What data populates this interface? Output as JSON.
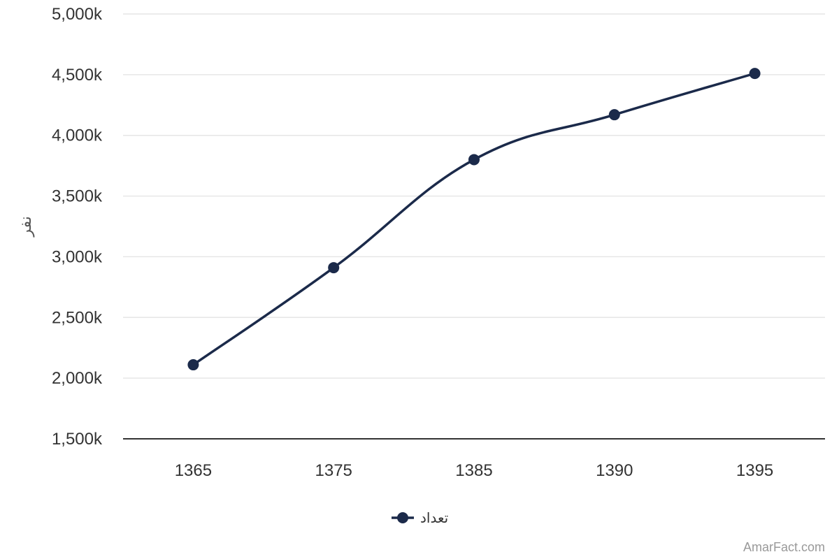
{
  "chart_data": {
    "type": "line",
    "categories": [
      "1365",
      "1375",
      "1385",
      "1390",
      "1395"
    ],
    "series": [
      {
        "name": "تعداد",
        "values": [
          2110000,
          2910000,
          3800000,
          4170000,
          4510000
        ],
        "color": "#1b2a4a"
      }
    ],
    "ylabel": "نفر",
    "xlabel": "",
    "ylim": [
      1500000,
      5000000
    ],
    "ytick_step": 500000,
    "yticks": [
      "1,500k",
      "2,000k",
      "2,500k",
      "3,000k",
      "3,500k",
      "4,000k",
      "4,500k",
      "5,000k"
    ],
    "grid": true,
    "smooth": true,
    "legend_position": "bottom-center"
  },
  "credit": "AmarFact.com",
  "colors": {
    "grid": "#e6e6e6",
    "axis": "#333333",
    "series": "#1b2a4a"
  }
}
